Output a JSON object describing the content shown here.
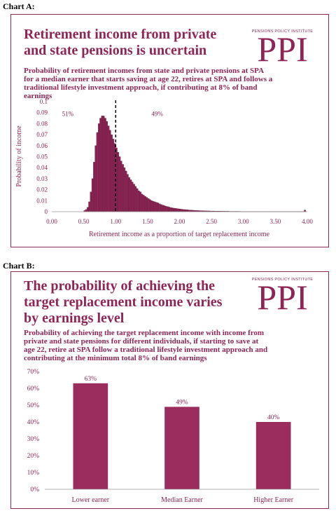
{
  "chart_a": {
    "label": "Chart A:",
    "title_line1": "Retirement income from private",
    "title_line2": "and state pensions is uncertain",
    "logo_small": "PENSIONS POLICY INSTITUTE",
    "logo_big": "PPI",
    "subtitle_lines": [
      "Probability of retirement incomes from state and private pensions at SPA",
      "for a median earner that starts saving at age 22, retires at SPA and follows a",
      "traditional lifestyle investment approach, if contributing at 8% of band",
      "earnings"
    ]
  },
  "chart_b": {
    "label": "Chart B:",
    "title_line1": "The probability of achieving the",
    "title_line2": "target replacement income varies",
    "title_line3": "by earnings level",
    "logo_small": "PENSIONS POLICY INSTITUTE",
    "logo_big": "PPI",
    "subtitle_lines": [
      "Probability of achieving the target replacement income with income from",
      "private and state pensions for different individuals, if starting to save at",
      "age 22, retire at SPA follow a traditional lifestyle investment approach and",
      "contributing at the minimum total 8% of band earnings"
    ]
  },
  "chart_data": [
    {
      "type": "bar",
      "ylabel": "Probability of income",
      "xlabel": "Retirement income as a proportion of target replacement income",
      "xlim": [
        0,
        4
      ],
      "ylim": [
        0,
        0.1
      ],
      "x_ticks": [
        "0.00",
        "0.50",
        "1.00",
        "1.50",
        "2.00",
        "2.50",
        "3.00",
        "3.50",
        "4.00"
      ],
      "y_ticks": [
        "0",
        "0.01",
        "0.02",
        "0.03",
        "0.04",
        "0.05",
        "0.06",
        "0.07",
        "0.08",
        "0.09",
        "0.1"
      ],
      "bin_width": 0.025,
      "x": [
        0.5,
        0.525,
        0.55,
        0.575,
        0.6,
        0.625,
        0.65,
        0.675,
        0.7,
        0.725,
        0.75,
        0.775,
        0.8,
        0.825,
        0.85,
        0.875,
        0.9,
        0.925,
        0.95,
        0.975,
        1.0,
        1.025,
        1.05,
        1.075,
        1.1,
        1.125,
        1.15,
        1.175,
        1.2,
        1.225,
        1.25,
        1.275,
        1.3,
        1.325,
        1.35,
        1.375,
        1.4,
        1.425,
        1.45,
        1.475,
        1.5,
        1.525,
        1.55,
        1.575,
        1.6,
        1.625,
        1.65,
        1.675,
        1.7,
        1.725,
        1.75,
        1.775,
        1.8,
        1.825,
        1.85,
        1.875,
        1.9,
        1.925,
        1.95,
        1.975,
        2.0,
        2.025,
        2.05,
        2.075,
        2.1,
        2.125,
        2.15,
        2.175,
        2.2,
        2.225,
        2.25,
        2.275,
        2.3,
        2.325,
        2.35,
        2.375,
        2.4,
        2.425,
        2.45,
        2.475,
        2.5,
        2.525,
        2.55,
        2.575,
        2.6,
        2.625,
        2.65,
        2.675,
        2.7,
        2.725,
        2.75,
        2.775,
        2.8,
        2.825,
        2.85,
        2.875,
        2.9,
        2.925,
        2.95,
        2.975,
        3.0,
        3.025,
        3.05,
        3.075,
        3.1,
        3.125,
        3.15,
        3.175,
        3.2,
        3.225,
        3.25,
        3.275,
        3.3,
        3.325,
        3.35,
        3.375,
        3.4,
        3.425,
        3.45,
        3.475,
        3.5,
        3.525,
        3.55,
        3.575,
        3.6,
        3.625,
        3.65,
        3.675,
        3.7,
        3.725,
        3.75,
        3.775,
        3.8,
        3.825,
        3.85,
        3.875,
        3.9,
        3.925,
        3.95
      ],
      "y": [
        0.001,
        0.002,
        0.004,
        0.009,
        0.018,
        0.03,
        0.045,
        0.06,
        0.072,
        0.08,
        0.085,
        0.087,
        0.087,
        0.085,
        0.082,
        0.078,
        0.074,
        0.07,
        0.066,
        0.062,
        0.058,
        0.054,
        0.05,
        0.046,
        0.043,
        0.04,
        0.037,
        0.034,
        0.031,
        0.029,
        0.027,
        0.025,
        0.023,
        0.021,
        0.019,
        0.018,
        0.016,
        0.015,
        0.014,
        0.013,
        0.012,
        0.011,
        0.01,
        0.0095,
        0.009,
        0.0085,
        0.008,
        0.0072,
        0.0065,
        0.006,
        0.0055,
        0.005,
        0.0046,
        0.0042,
        0.0038,
        0.0035,
        0.0032,
        0.003,
        0.0028,
        0.0026,
        0.0024,
        0.0022,
        0.002,
        0.0019,
        0.0018,
        0.0016,
        0.0015,
        0.0014,
        0.0013,
        0.0012,
        0.0011,
        0.001,
        0.001,
        0.0009,
        0.0009,
        0.0008,
        0.0008,
        0.0007,
        0.0007,
        0.0006,
        0.0006,
        0.0006,
        0.0005,
        0.0005,
        0.0005,
        0.0005,
        0.0004,
        0.0004,
        0.0004,
        0.0004,
        0.0004,
        0.0003,
        0.0003,
        0.0003,
        0.0003,
        0.0003,
        0.0003,
        0.0003,
        0.0002,
        0.0002,
        0.0002,
        0.0002,
        0.0002,
        0.0002,
        0.0002,
        0.0002,
        0.0002,
        0.0002,
        0.0002,
        0.0002,
        0.0002,
        0.0002,
        0.0002,
        0.0002,
        0.0002,
        0.0001,
        0.0001,
        0.0001,
        0.0001,
        0.0001,
        0.0001,
        0.0001,
        0.0001,
        0.0001,
        0.0001,
        0.0001,
        0.0001,
        0.0001,
        0.0001,
        0.0001,
        0.0001,
        0.0001,
        0.0001,
        0.0001,
        0.0001,
        0.0001,
        0.0001,
        0.0001,
        0.0015
      ],
      "reference_line_x": 1.0,
      "annotations": [
        {
          "text": "51%",
          "x": 0.25,
          "y": 0.087
        },
        {
          "text": "49%",
          "x": 1.65,
          "y": 0.087
        }
      ],
      "color": "#8e2556",
      "grid": false
    },
    {
      "type": "bar",
      "categories": [
        "Lower earner",
        "Median Earner",
        "Higher Earner"
      ],
      "values": [
        63,
        49,
        40
      ],
      "data_labels": [
        "63%",
        "49%",
        "40%"
      ],
      "ylim": [
        0,
        70
      ],
      "y_ticks": [
        "0%",
        "10%",
        "20%",
        "30%",
        "40%",
        "50%",
        "60%",
        "70%"
      ],
      "color": "#9b2d5e",
      "grid": false
    }
  ]
}
